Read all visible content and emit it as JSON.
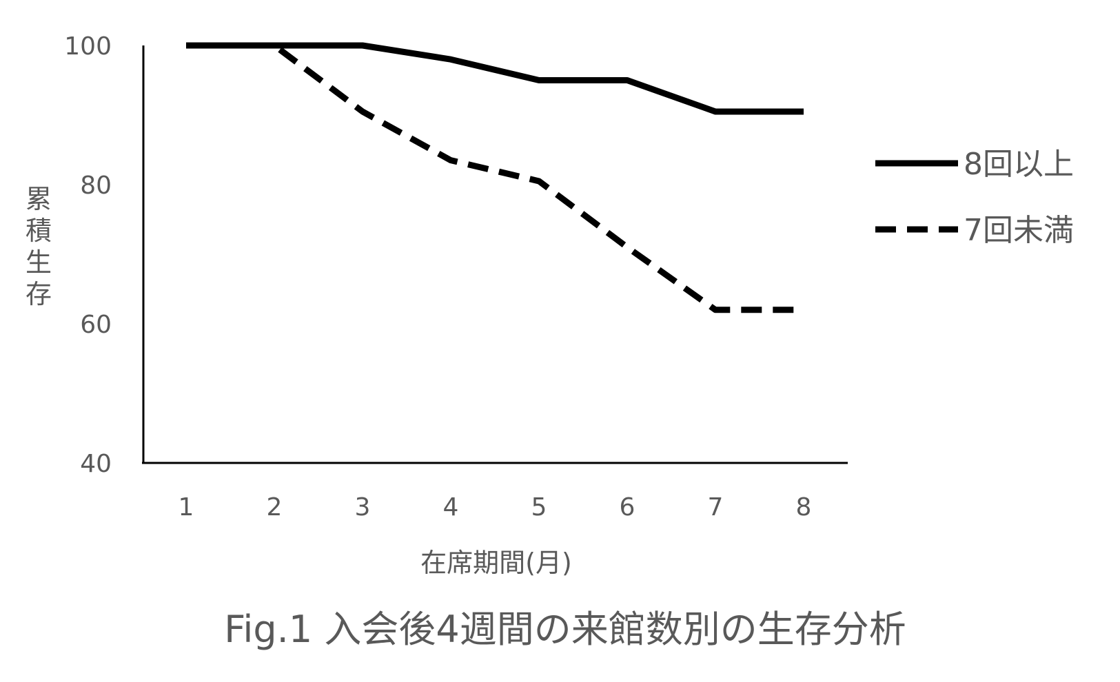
{
  "chart_data": {
    "type": "line",
    "caption": "Fig.1 入会後4週間の来館数別の生存分析",
    "xlabel": "在席期間(月)",
    "ylabel": "累積生存",
    "categories": [
      "1",
      "2",
      "3",
      "4",
      "5",
      "6",
      "7",
      "8"
    ],
    "x": [
      1,
      2,
      3,
      4,
      5,
      6,
      7,
      8
    ],
    "ylim": [
      40,
      100
    ],
    "yticks": [
      "40",
      "60",
      "80",
      "100"
    ],
    "grid": false,
    "legend_position": "right",
    "series": [
      {
        "name": "8回以上",
        "style": "solid",
        "color": "#000000",
        "values": [
          100,
          100,
          100,
          98,
          95,
          95,
          90.5,
          90.5
        ]
      },
      {
        "name": "7回未満",
        "style": "dashed",
        "color": "#000000",
        "values": [
          100,
          100,
          90.5,
          83.5,
          80.5,
          71,
          62,
          62
        ]
      }
    ]
  }
}
